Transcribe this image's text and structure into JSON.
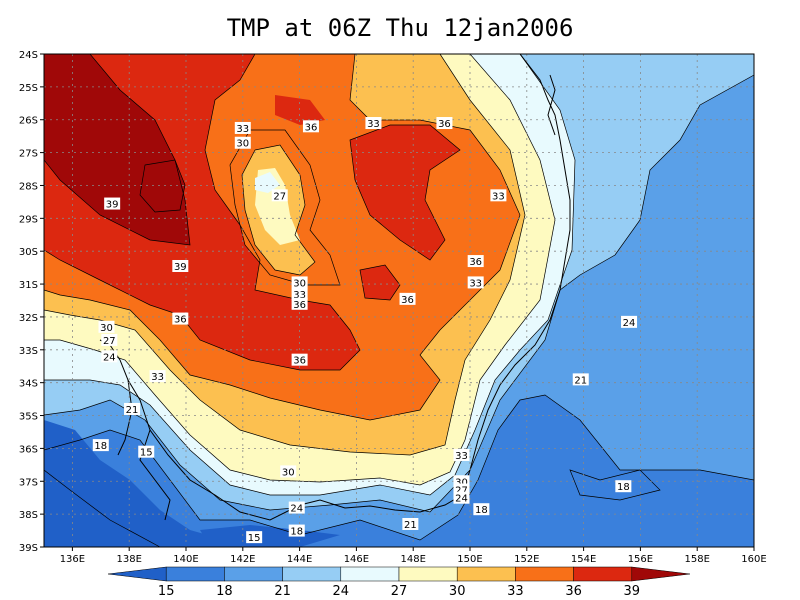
{
  "title": "TMP at 06Z Thu 12jan2006",
  "chart_data": {
    "type": "heatmap",
    "variable": "TMP",
    "xlim": [
      135,
      160
    ],
    "ylim": [
      -39,
      -24
    ],
    "x_ticks": [
      "136E",
      "138E",
      "140E",
      "142E",
      "144E",
      "146E",
      "148E",
      "150E",
      "152E",
      "154E",
      "156E",
      "158E",
      "160E"
    ],
    "x_tick_values": [
      136,
      138,
      140,
      142,
      144,
      146,
      148,
      150,
      152,
      154,
      156,
      158,
      160
    ],
    "y_ticks": [
      "24S",
      "25S",
      "26S",
      "27S",
      "28S",
      "29S",
      "30S",
      "31S",
      "32S",
      "33S",
      "34S",
      "35S",
      "36S",
      "37S",
      "38S",
      "39S"
    ],
    "y_tick_values": [
      -24,
      -25,
      -26,
      -27,
      -28,
      -29,
      -30,
      -31,
      -32,
      -33,
      -34,
      -35,
      -36,
      -37,
      -38,
      -39
    ],
    "grid": true,
    "legend": {
      "position": "bottom",
      "boundaries": [
        "15",
        "18",
        "21",
        "24",
        "27",
        "30",
        "33",
        "36",
        "39"
      ],
      "colors": [
        "#2060c8",
        "#3a80dc",
        "#5aa0e8",
        "#96cdf4",
        "#e8fafe",
        "#fefac0",
        "#fcc050",
        "#f87018",
        "#dc2810",
        "#a00808"
      ]
    },
    "contour_labels": [
      {
        "text": "33",
        "lon": 142.0,
        "lat": -26.25
      },
      {
        "text": "30",
        "lon": 142.0,
        "lat": -26.7
      },
      {
        "text": "36",
        "lon": 144.4,
        "lat": -26.2
      },
      {
        "text": "33",
        "lon": 146.6,
        "lat": -26.1
      },
      {
        "text": "36",
        "lon": 149.1,
        "lat": -26.1
      },
      {
        "text": "27",
        "lon": 143.3,
        "lat": -28.3
      },
      {
        "text": "33",
        "lon": 151.0,
        "lat": -28.3
      },
      {
        "text": "39",
        "lon": 137.4,
        "lat": -28.55
      },
      {
        "text": "39",
        "lon": 139.8,
        "lat": -30.45
      },
      {
        "text": "36",
        "lon": 150.2,
        "lat": -30.3
      },
      {
        "text": "30",
        "lon": 144.0,
        "lat": -30.95
      },
      {
        "text": "33",
        "lon": 150.2,
        "lat": -30.95
      },
      {
        "text": "33",
        "lon": 144.0,
        "lat": -31.3
      },
      {
        "text": "36",
        "lon": 144.0,
        "lat": -31.6
      },
      {
        "text": "36",
        "lon": 147.8,
        "lat": -31.45
      },
      {
        "text": "36",
        "lon": 139.8,
        "lat": -32.05
      },
      {
        "text": "24",
        "lon": 155.6,
        "lat": -32.15
      },
      {
        "text": "30",
        "lon": 137.2,
        "lat": -32.3
      },
      {
        "text": "27",
        "lon": 137.3,
        "lat": -32.7
      },
      {
        "text": "24",
        "lon": 137.3,
        "lat": -33.2
      },
      {
        "text": "36",
        "lon": 144.0,
        "lat": -33.3
      },
      {
        "text": "33",
        "lon": 139.0,
        "lat": -33.8
      },
      {
        "text": "21",
        "lon": 153.9,
        "lat": -33.9
      },
      {
        "text": "21",
        "lon": 138.1,
        "lat": -34.8
      },
      {
        "text": "18",
        "lon": 137.0,
        "lat": -35.9
      },
      {
        "text": "15",
        "lon": 138.6,
        "lat": -36.1
      },
      {
        "text": "33",
        "lon": 149.7,
        "lat": -36.2
      },
      {
        "text": "30",
        "lon": 143.6,
        "lat": -36.7
      },
      {
        "text": "30",
        "lon": 149.7,
        "lat": -37.0
      },
      {
        "text": "27",
        "lon": 149.7,
        "lat": -37.25
      },
      {
        "text": "24",
        "lon": 149.7,
        "lat": -37.5
      },
      {
        "text": "18",
        "lon": 155.4,
        "lat": -37.15
      },
      {
        "text": "24",
        "lon": 143.9,
        "lat": -37.8
      },
      {
        "text": "18",
        "lon": 150.4,
        "lat": -37.85
      },
      {
        "text": "21",
        "lon": 147.9,
        "lat": -38.3
      },
      {
        "text": "18",
        "lon": 143.9,
        "lat": -38.5
      },
      {
        "text": "15",
        "lon": 142.4,
        "lat": -38.7
      }
    ]
  }
}
